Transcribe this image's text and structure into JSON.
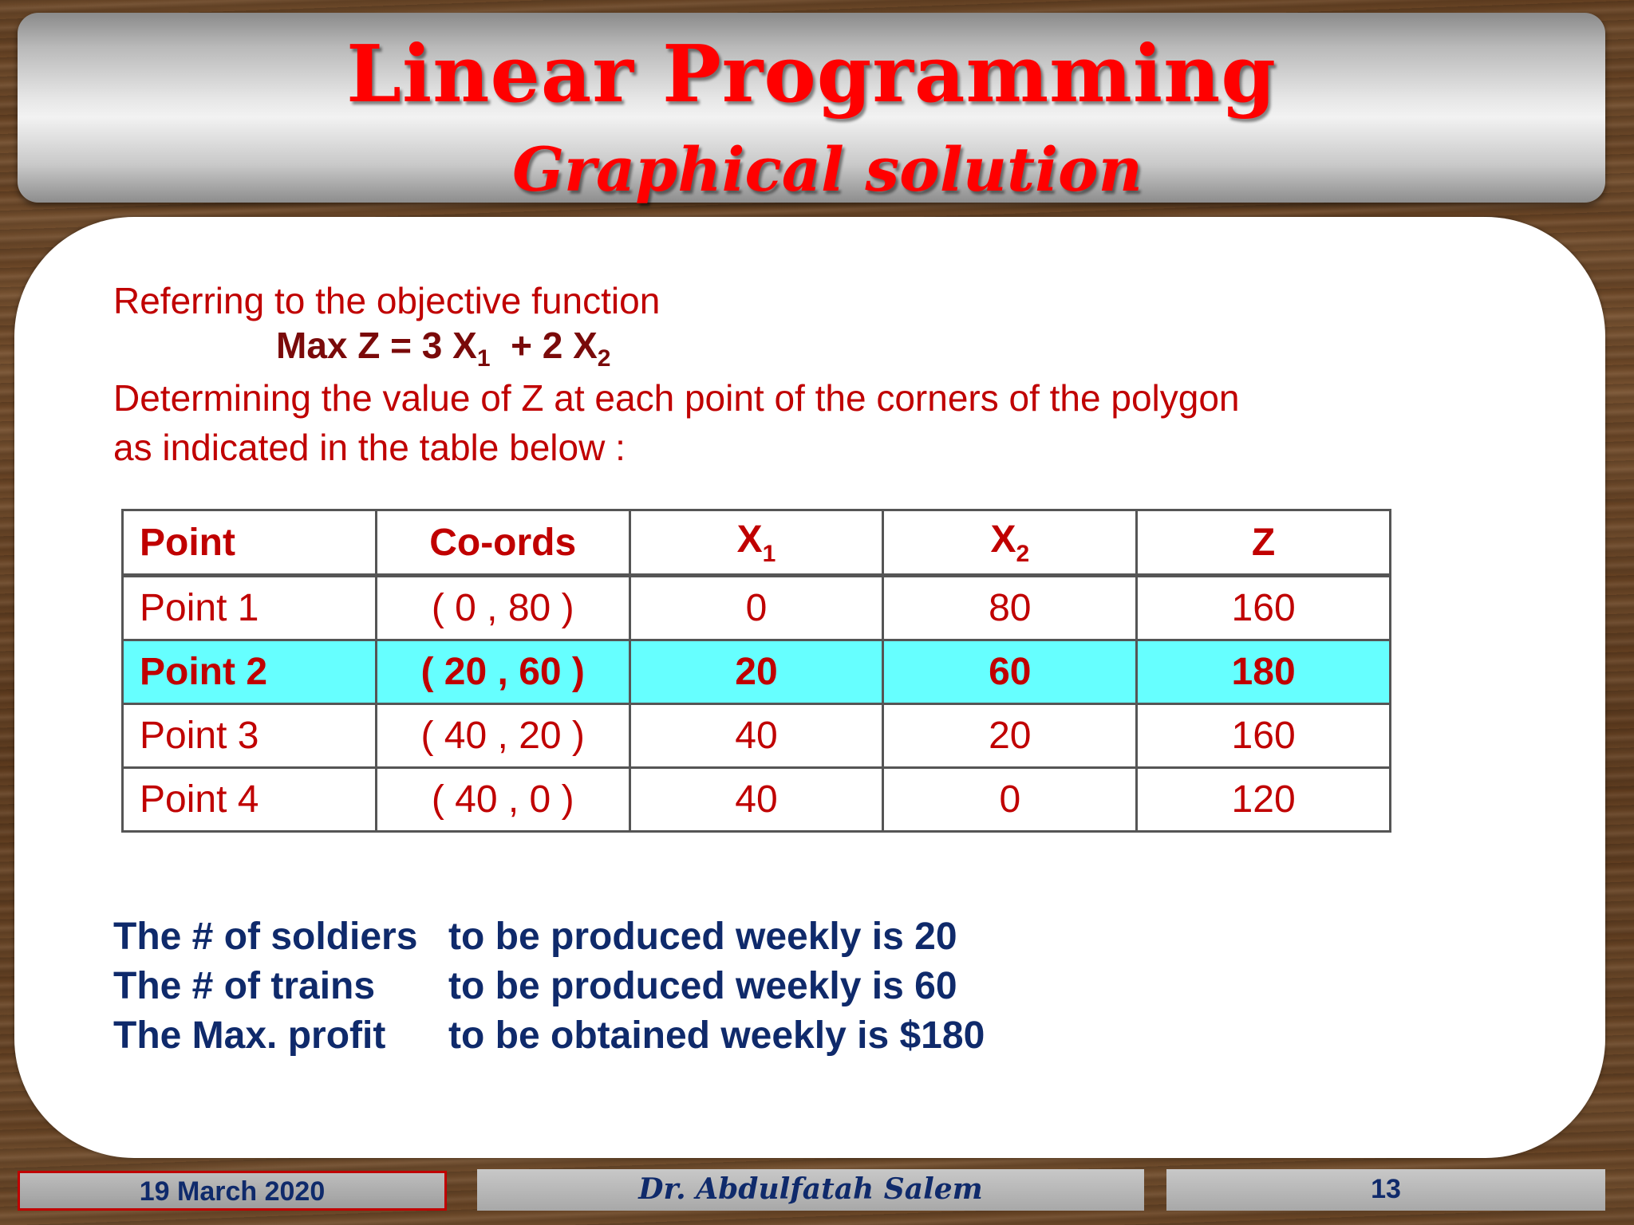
{
  "title": {
    "main": "Linear Programming",
    "sub": "Graphical solution"
  },
  "intro": {
    "line1": "Referring to the objective function",
    "formula": {
      "prefix": "Max Z = 3 X",
      "sub1": "1",
      "middle": "  + 2 X",
      "sub2": "2"
    },
    "line2": "Determining the value of Z at each point of the corners of the polygon",
    "line3": "as indicated in the table below :"
  },
  "table": {
    "headers": {
      "point": "Point",
      "coords": "Co-ords",
      "x1": "X",
      "x1_sub": "1",
      "x2": "X",
      "x2_sub": "2",
      "z": "Z"
    },
    "rows": [
      {
        "point": "Point 1",
        "coords": "( 0 , 80 )",
        "x1": "0",
        "x2": "80",
        "z": "160"
      },
      {
        "point": "Point 2",
        "coords": "( 20 , 60 )",
        "x1": "20",
        "x2": "60",
        "z": "180"
      },
      {
        "point": "Point 3",
        "coords": "( 40 , 20 )",
        "x1": "40",
        "x2": "20",
        "z": "160"
      },
      {
        "point": "Point 4",
        "coords": "( 40 , 0 )",
        "x1": "40",
        "x2": "0",
        "z": "120"
      }
    ],
    "highlight_color": "#66ffff"
  },
  "conclusion": [
    {
      "lead": "The # of soldiers",
      "rest": "to be produced weekly is 20"
    },
    {
      "lead": "The # of trains",
      "rest": "to be produced weekly is 60"
    },
    {
      "lead": "The Max. profit",
      "rest": "to be obtained weekly is $180"
    }
  ],
  "footer": {
    "date": "19 March 2020",
    "author": "Dr. Abdulfatah Salem",
    "page": "13"
  },
  "colors": {
    "title": "#ff0000",
    "text_red": "#c00000",
    "formula": "#7a0a0a",
    "conclusion": "#0f2a6b"
  }
}
